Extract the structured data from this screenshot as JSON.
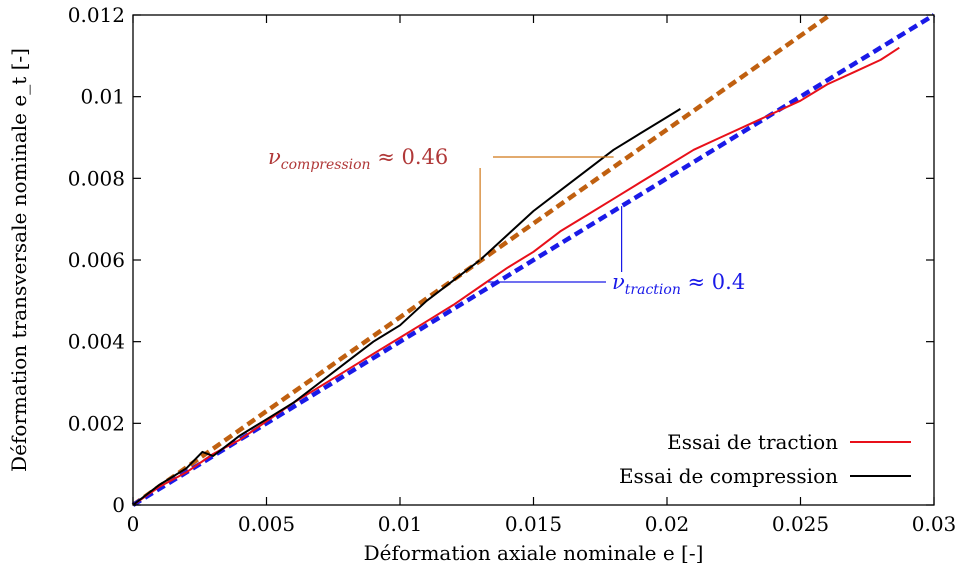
{
  "chart_data": {
    "type": "line",
    "xlabel": "Déformation axiale nominale e [-]",
    "ylabel": "Déformation transversale nominale e_t [-]",
    "xlim": [
      0,
      0.03
    ],
    "ylim": [
      0,
      0.012
    ],
    "x_ticks": [
      "0",
      "0.005",
      "0.01",
      "0.015",
      "0.02",
      "0.025",
      "0.03"
    ],
    "y_ticks": [
      "0",
      "0.002",
      "0.004",
      "0.006",
      "0.008",
      "0.01",
      "0.012"
    ],
    "grid": false,
    "legend_position": "bottom-right",
    "series": [
      {
        "name": "Essai de traction",
        "color": "#e8101a",
        "x": [
          0,
          0.001,
          0.002,
          0.003,
          0.004,
          0.005,
          0.006,
          0.007,
          0.008,
          0.009,
          0.01,
          0.011,
          0.012,
          0.013,
          0.014,
          0.015,
          0.016,
          0.017,
          0.018,
          0.019,
          0.02,
          0.021,
          0.022,
          0.023,
          0.024,
          0.025,
          0.026,
          0.027,
          0.028,
          0.0287
        ],
        "y": [
          0,
          0.00045,
          0.0008,
          0.00125,
          0.0016,
          0.00205,
          0.0025,
          0.0029,
          0.0033,
          0.0037,
          0.0041,
          0.0045,
          0.0049,
          0.00535,
          0.0058,
          0.0062,
          0.0067,
          0.0071,
          0.0075,
          0.0079,
          0.0083,
          0.0087,
          0.009,
          0.0093,
          0.0096,
          0.0099,
          0.0103,
          0.0106,
          0.0109,
          0.0112
        ]
      },
      {
        "name": "Essai de compression",
        "color": "#000000",
        "x": [
          0,
          0.001,
          0.002,
          0.0026,
          0.003,
          0.004,
          0.005,
          0.006,
          0.007,
          0.008,
          0.009,
          0.01,
          0.011,
          0.012,
          0.013,
          0.014,
          0.015,
          0.016,
          0.017,
          0.018,
          0.019,
          0.02,
          0.0205
        ],
        "y": [
          0,
          0.0005,
          0.0009,
          0.0013,
          0.0012,
          0.0017,
          0.0021,
          0.0025,
          0.003,
          0.0035,
          0.004,
          0.0044,
          0.005,
          0.0055,
          0.006,
          0.0066,
          0.0072,
          0.0077,
          0.0082,
          0.0087,
          0.0091,
          0.0095,
          0.0097
        ]
      },
      {
        "name": "",
        "color": "#c06010",
        "dashed": true,
        "slope": 0.46,
        "x": [
          0,
          0.0261
        ],
        "y": [
          0,
          0.012
        ]
      },
      {
        "name": "",
        "color": "#1a1ae8",
        "dashed": true,
        "slope": 0.4,
        "x": [
          0,
          0.03
        ],
        "y": [
          0,
          0.012
        ]
      }
    ],
    "annotations": [
      {
        "name": "compression",
        "label_symbol": "ν",
        "label_subscript": "compression",
        "label_value": " ≈ 0.46",
        "color": "#b03838",
        "points_to": [
          0.018,
          0.00828
        ],
        "stem_to": [
          0.013,
          0.00598
        ]
      },
      {
        "name": "traction",
        "label_symbol": "ν",
        "label_subscript": "traction",
        "label_value": " ≈ 0.4",
        "color": "#1a1ae8",
        "points_to": [
          0.0133,
          0.00532
        ],
        "stem_to": [
          0.0183,
          0.00732
        ]
      }
    ]
  }
}
